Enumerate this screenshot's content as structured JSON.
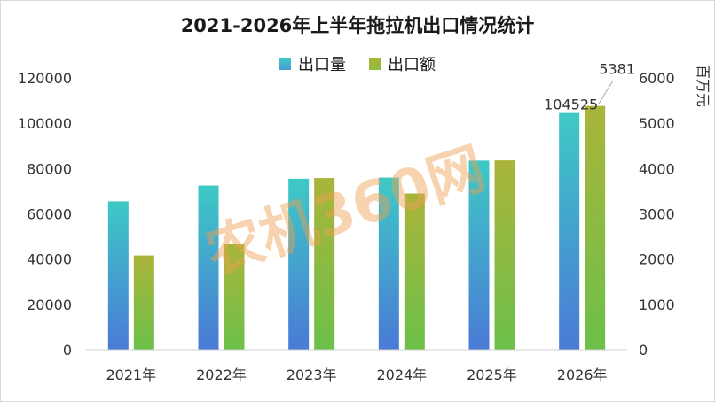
{
  "chart_data": {
    "type": "bar",
    "title": "2021-2026年上半年拖拉机出口情况统计",
    "categories": [
      "2021年",
      "2022年",
      "2023年",
      "2024年",
      "2025年",
      "2026年"
    ],
    "series": [
      {
        "name": "出口量",
        "axis": "left",
        "values": [
          65500,
          72500,
          75500,
          76000,
          83500,
          104525
        ],
        "color_top": "#3ec9c6",
        "color_bottom": "#4a7ad6"
      },
      {
        "name": "出口额",
        "axis": "right",
        "values": [
          2080,
          2330,
          3790,
          3450,
          4180,
          5381
        ],
        "color_top": "#aab43a",
        "color_bottom": "#6cc04a"
      }
    ],
    "left_axis": {
      "min": 0,
      "max": 120000,
      "ticks": [
        "0",
        "20000",
        "40000",
        "60000",
        "80000",
        "100000",
        "120000"
      ]
    },
    "right_axis": {
      "min": 0,
      "max": 6000,
      "ticks": [
        "0",
        "1000",
        "2000",
        "3000",
        "4000",
        "5000",
        "6000"
      ],
      "label": "百万元"
    },
    "data_labels": [
      {
        "series": 0,
        "index": 5,
        "text": "104525"
      },
      {
        "series": 1,
        "index": 5,
        "text": "5381"
      }
    ],
    "legend_position": "top",
    "grid": false
  },
  "watermark": "农机360网"
}
